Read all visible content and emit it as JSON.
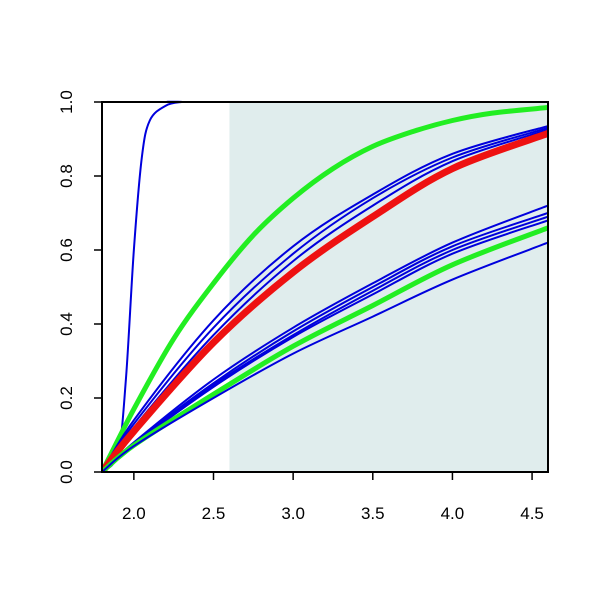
{
  "chart_data": {
    "type": "line",
    "title": "",
    "xlabel": "",
    "ylabel": "",
    "xlim": [
      1.8,
      4.6
    ],
    "ylim": [
      0.0,
      1.0
    ],
    "x_ticks": [
      2.0,
      2.5,
      3.0,
      3.5,
      4.0,
      4.5
    ],
    "x_tick_labels": [
      "2.0",
      "2.5",
      "3.0",
      "3.5",
      "4.0",
      "4.5"
    ],
    "y_ticks": [
      0.0,
      0.2,
      0.4,
      0.6,
      0.8,
      1.0
    ],
    "y_tick_labels": [
      "0.0",
      "0.2",
      "0.4",
      "0.6",
      "0.8",
      "1.0"
    ],
    "grid": false,
    "legend": "none",
    "shaded_region": {
      "x_from": 2.6,
      "x_to": 4.6,
      "color": "#e0eded"
    },
    "colors": {
      "blue": "#0000dd",
      "green": "#22ee22",
      "red": "#ee1111"
    },
    "series": [
      {
        "color": "blue",
        "width": 2,
        "x": [
          1.8,
          1.9,
          1.95,
          2.0,
          2.05,
          2.1,
          2.2,
          2.3,
          2.4,
          4.6
        ],
        "y": [
          0.0,
          0.05,
          0.25,
          0.6,
          0.85,
          0.95,
          0.99,
          1.0,
          1.0,
          1.0
        ]
      },
      {
        "color": "blue",
        "width": 2,
        "x": [
          2.6,
          4.6
        ],
        "y": [
          1.0,
          1.0
        ]
      },
      {
        "color": "green",
        "width": 5,
        "x": [
          1.8,
          2.0,
          2.25,
          2.5,
          2.75,
          3.0,
          3.25,
          3.5,
          3.75,
          4.0,
          4.25,
          4.6
        ],
        "y": [
          0.0,
          0.17,
          0.36,
          0.51,
          0.64,
          0.74,
          0.82,
          0.88,
          0.92,
          0.95,
          0.97,
          0.985
        ]
      },
      {
        "color": "blue",
        "width": 2,
        "x": [
          1.8,
          2.0,
          2.5,
          3.0,
          3.5,
          4.0,
          4.6
        ],
        "y": [
          0.0,
          0.14,
          0.41,
          0.61,
          0.75,
          0.86,
          0.935
        ]
      },
      {
        "color": "blue",
        "width": 2,
        "x": [
          1.8,
          2.0,
          2.5,
          3.0,
          3.5,
          4.0,
          4.6
        ],
        "y": [
          0.0,
          0.13,
          0.39,
          0.59,
          0.74,
          0.85,
          0.93
        ]
      },
      {
        "color": "blue",
        "width": 2,
        "x": [
          1.8,
          2.0,
          2.5,
          3.0,
          3.5,
          4.0,
          4.6
        ],
        "y": [
          0.0,
          0.12,
          0.37,
          0.57,
          0.72,
          0.84,
          0.925
        ]
      },
      {
        "color": "red",
        "width": 7,
        "x": [
          1.8,
          2.0,
          2.5,
          3.0,
          3.5,
          4.0,
          4.6
        ],
        "y": [
          0.0,
          0.11,
          0.35,
          0.54,
          0.69,
          0.82,
          0.915
        ]
      },
      {
        "color": "blue",
        "width": 2,
        "x": [
          1.8,
          2.0,
          2.5,
          3.0,
          3.5,
          4.0,
          4.6
        ],
        "y": [
          0.0,
          0.08,
          0.25,
          0.39,
          0.51,
          0.62,
          0.72
        ]
      },
      {
        "color": "blue",
        "width": 2,
        "x": [
          1.8,
          2.0,
          2.5,
          3.0,
          3.5,
          4.0,
          4.6
        ],
        "y": [
          0.0,
          0.078,
          0.24,
          0.38,
          0.5,
          0.61,
          0.7
        ]
      },
      {
        "color": "blue",
        "width": 2,
        "x": [
          1.8,
          2.0,
          2.5,
          3.0,
          3.5,
          4.0,
          4.6
        ],
        "y": [
          0.0,
          0.076,
          0.235,
          0.37,
          0.49,
          0.6,
          0.69
        ]
      },
      {
        "color": "blue",
        "width": 2,
        "x": [
          1.8,
          2.0,
          2.5,
          3.0,
          3.5,
          4.0,
          4.6
        ],
        "y": [
          0.0,
          0.074,
          0.23,
          0.365,
          0.48,
          0.59,
          0.68
        ]
      },
      {
        "color": "green",
        "width": 5,
        "x": [
          1.8,
          2.0,
          2.5,
          3.0,
          3.5,
          4.0,
          4.6
        ],
        "y": [
          0.0,
          0.072,
          0.21,
          0.34,
          0.45,
          0.56,
          0.66
        ]
      },
      {
        "color": "blue",
        "width": 2,
        "x": [
          1.8,
          2.0,
          2.5,
          3.0,
          3.5,
          4.0,
          4.6
        ],
        "y": [
          0.0,
          0.07,
          0.2,
          0.32,
          0.42,
          0.52,
          0.62
        ]
      }
    ]
  }
}
